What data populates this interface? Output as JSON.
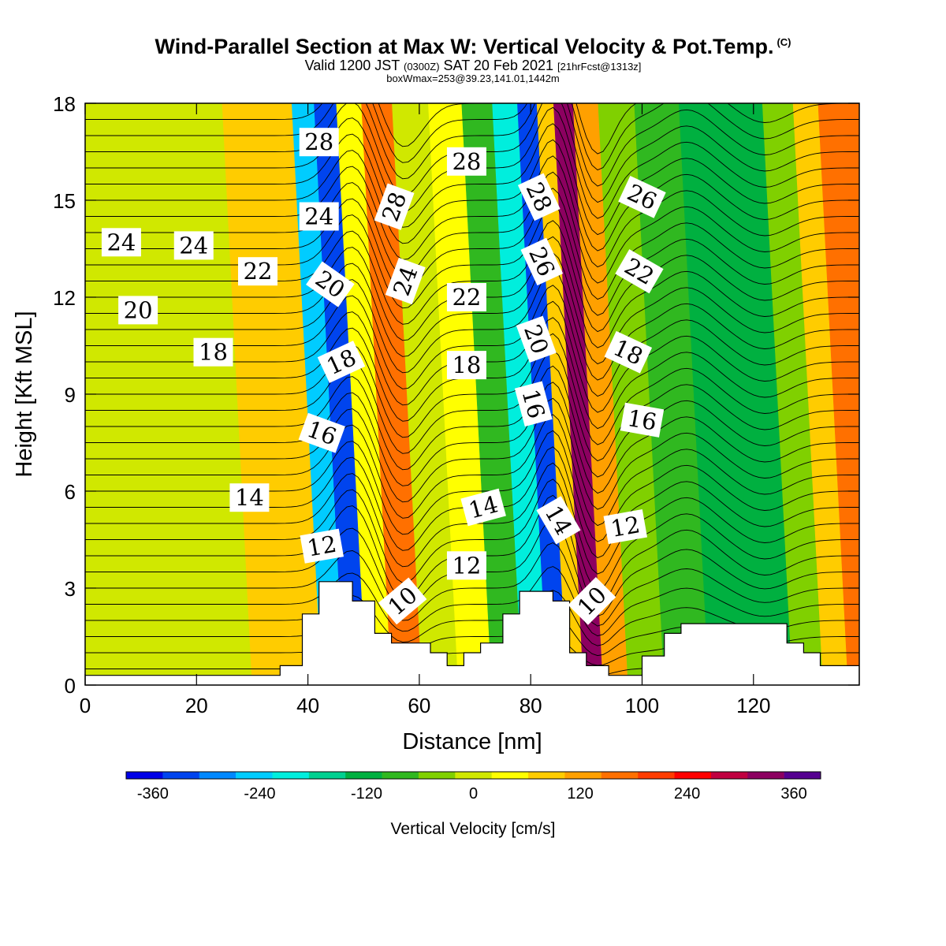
{
  "header": {
    "title": "Wind-Parallel Section at Max W: Vertical Velocity & Pot.Temp.",
    "title_mark": "(C)",
    "valid_prefix": "Valid 1200 JST",
    "valid_z": "(0300Z)",
    "valid_date": "SAT 20 Feb 2021",
    "valid_fcst": "[21hrFcst@1313z]",
    "box_line": "boxWmax=253@39.23,141.01,1442m"
  },
  "chart_data": {
    "type": "heatmap",
    "xlabel": "Distance [nm]",
    "ylabel": "Height [Kft MSL]",
    "xlim": [
      0,
      139
    ],
    "ylim": [
      0,
      18
    ],
    "x_ticks": [
      "0",
      "20",
      "40",
      "60",
      "80",
      "100",
      "120"
    ],
    "y_ticks": [
      "0",
      "3",
      "6",
      "9",
      "12",
      "15",
      "18"
    ],
    "colorbar": {
      "title": "Vertical Velocity [cm/s]",
      "range": [
        -390,
        390
      ],
      "tick_values": [
        -360,
        -240,
        -120,
        0,
        120,
        240,
        360
      ],
      "tick_labels": [
        "-360",
        "-240",
        "-120",
        "0",
        "120",
        "240",
        "360"
      ],
      "colors": [
        "#0000e6",
        "#0044ee",
        "#0088ff",
        "#00ccff",
        "#00eedd",
        "#00d090",
        "#00b040",
        "#30b820",
        "#80d000",
        "#d0e800",
        "#ffff00",
        "#ffcc00",
        "#ffa000",
        "#ff7000",
        "#ff3c00",
        "#ff0000",
        "#c00040",
        "#8c0060",
        "#550090"
      ]
    },
    "velocity_bands": [
      {
        "x": 0,
        "w": 10
      },
      {
        "x": 20,
        "w": 18
      },
      {
        "x": 40,
        "w": 90
      },
      {
        "x": 45,
        "w": -230
      },
      {
        "x": 48,
        "w": -340
      },
      {
        "x": 53,
        "w": 60
      },
      {
        "x": 57,
        "w": 150
      },
      {
        "x": 64,
        "w": 20
      },
      {
        "x": 70,
        "w": 30
      },
      {
        "x": 76,
        "w": -80
      },
      {
        "x": 81,
        "w": -190
      },
      {
        "x": 85,
        "w": -330
      },
      {
        "x": 88,
        "w": 100
      },
      {
        "x": 91,
        "w": 340
      },
      {
        "x": 95,
        "w": 110
      },
      {
        "x": 100,
        "w": -60
      },
      {
        "x": 108,
        "w": -90
      },
      {
        "x": 116,
        "w": -110
      },
      {
        "x": 124,
        "w": -140
      },
      {
        "x": 130,
        "w": -60
      },
      {
        "x": 135,
        "w": 90
      },
      {
        "x": 139,
        "w": 150
      }
    ],
    "terrain": [
      [
        0,
        0.3
      ],
      [
        35,
        0.3
      ],
      [
        35,
        0.6
      ],
      [
        39,
        0.6
      ],
      [
        39,
        2.2
      ],
      [
        42,
        2.2
      ],
      [
        42,
        3.2
      ],
      [
        48,
        3.2
      ],
      [
        48,
        2.6
      ],
      [
        52,
        2.6
      ],
      [
        52,
        1.6
      ],
      [
        55,
        1.6
      ],
      [
        55,
        1.3
      ],
      [
        62,
        1.3
      ],
      [
        62,
        1.0
      ],
      [
        65,
        1.0
      ],
      [
        65,
        0.6
      ],
      [
        68,
        0.6
      ],
      [
        68,
        1.0
      ],
      [
        71,
        1.0
      ],
      [
        71,
        1.3
      ],
      [
        75,
        1.3
      ],
      [
        75,
        2.2
      ],
      [
        78,
        2.2
      ],
      [
        78,
        2.9
      ],
      [
        84,
        2.9
      ],
      [
        84,
        2.6
      ],
      [
        87,
        2.6
      ],
      [
        87,
        1.0
      ],
      [
        90,
        1.0
      ],
      [
        90,
        0.6
      ],
      [
        94,
        0.6
      ],
      [
        94,
        0.3
      ],
      [
        100,
        0.3
      ],
      [
        100,
        0.9
      ],
      [
        104,
        0.9
      ],
      [
        104,
        1.6
      ],
      [
        107,
        1.6
      ],
      [
        107,
        1.9
      ],
      [
        126,
        1.9
      ],
      [
        126,
        1.3
      ],
      [
        129,
        1.3
      ],
      [
        129,
        1.0
      ],
      [
        132,
        1.0
      ],
      [
        132,
        0.6
      ],
      [
        139,
        0.6
      ]
    ],
    "theta_labels": [
      {
        "text": "28",
        "x": 42,
        "y": 16.8,
        "angle": 0
      },
      {
        "text": "24",
        "x": 42,
        "y": 14.5,
        "angle": 0
      },
      {
        "text": "24",
        "x": 6.5,
        "y": 13.7,
        "angle": 0
      },
      {
        "text": "24",
        "x": 19.5,
        "y": 13.6,
        "angle": 0
      },
      {
        "text": "22",
        "x": 31,
        "y": 12.8,
        "angle": 0
      },
      {
        "text": "20",
        "x": 9.5,
        "y": 11.6,
        "angle": 0
      },
      {
        "text": "20",
        "x": 44,
        "y": 12.4,
        "angle": 35
      },
      {
        "text": "18",
        "x": 23,
        "y": 10.3,
        "angle": 0
      },
      {
        "text": "18",
        "x": 46,
        "y": 10.0,
        "angle": -25
      },
      {
        "text": "16",
        "x": 42.5,
        "y": 7.8,
        "angle": 20
      },
      {
        "text": "14",
        "x": 29.5,
        "y": 5.8,
        "angle": 0
      },
      {
        "text": "12",
        "x": 42.5,
        "y": 4.3,
        "angle": -10
      },
      {
        "text": "10",
        "x": 57,
        "y": 2.6,
        "angle": -40
      },
      {
        "text": "28",
        "x": 55.5,
        "y": 14.8,
        "angle": -70
      },
      {
        "text": "24",
        "x": 57.5,
        "y": 12.5,
        "angle": -70
      },
      {
        "text": "28",
        "x": 68.5,
        "y": 16.2,
        "angle": 0
      },
      {
        "text": "22",
        "x": 68.5,
        "y": 12.0,
        "angle": 0
      },
      {
        "text": "18",
        "x": 68.5,
        "y": 9.9,
        "angle": 0
      },
      {
        "text": "14",
        "x": 71.5,
        "y": 5.5,
        "angle": -15
      },
      {
        "text": "12",
        "x": 68.5,
        "y": 3.7,
        "angle": 0
      },
      {
        "text": "28",
        "x": 81.5,
        "y": 15.1,
        "angle": 65
      },
      {
        "text": "26",
        "x": 82,
        "y": 13.1,
        "angle": 65
      },
      {
        "text": "20",
        "x": 81,
        "y": 10.7,
        "angle": 70
      },
      {
        "text": "16",
        "x": 80.5,
        "y": 8.7,
        "angle": 75
      },
      {
        "text": "14",
        "x": 85,
        "y": 5.1,
        "angle": 60
      },
      {
        "text": "10",
        "x": 91,
        "y": 2.6,
        "angle": -45
      },
      {
        "text": "26",
        "x": 100,
        "y": 15.1,
        "angle": 25
      },
      {
        "text": "22",
        "x": 99.5,
        "y": 12.8,
        "angle": 30
      },
      {
        "text": "18",
        "x": 97.5,
        "y": 10.3,
        "angle": 25
      },
      {
        "text": "16",
        "x": 100,
        "y": 8.2,
        "angle": 10
      },
      {
        "text": "12",
        "x": 97,
        "y": 4.9,
        "angle": -10
      }
    ]
  }
}
